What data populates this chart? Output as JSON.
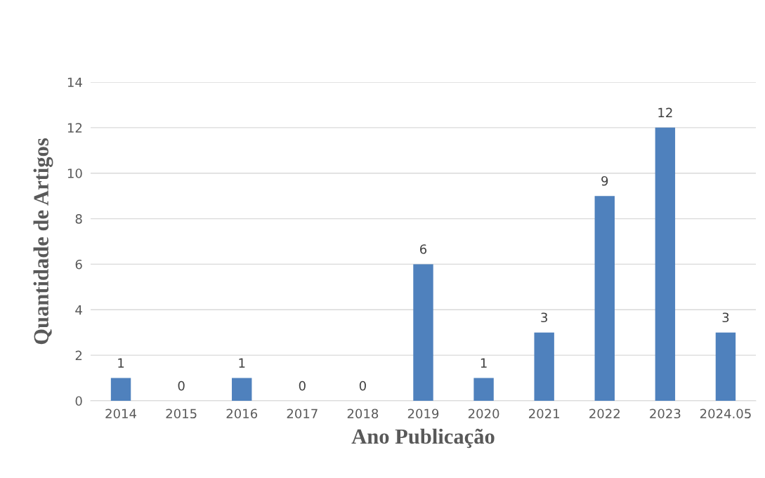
{
  "chart_data": {
    "type": "bar",
    "xlabel": "Ano Publicação",
    "ylabel": "Quantidade de Artigos",
    "categories": [
      "2014",
      "2015",
      "2016",
      "2017",
      "2018",
      "2019",
      "2020",
      "2021",
      "2022",
      "2023",
      "2024.05"
    ],
    "values": [
      1,
      0,
      1,
      0,
      0,
      6,
      1,
      3,
      9,
      12,
      3
    ],
    "color": "#4f81bd",
    "ylim": [
      0,
      14
    ],
    "yticks": [
      0,
      2,
      4,
      6,
      8,
      10,
      12,
      14
    ],
    "grid": "y",
    "data_labels": true
  }
}
